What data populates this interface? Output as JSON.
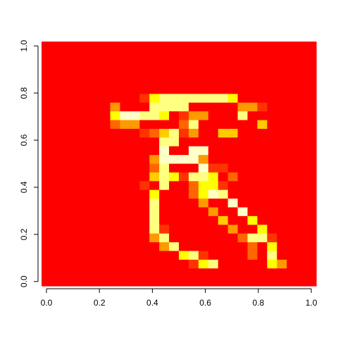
{
  "chart_data": {
    "type": "heatmap",
    "title": "",
    "xlabel": "",
    "ylabel": "",
    "xlim": [
      0,
      1
    ],
    "ylim": [
      0,
      1
    ],
    "x_ticks": [
      "0.0",
      "0.2",
      "0.4",
      "0.6",
      "0.8",
      "1.0"
    ],
    "y_ticks": [
      "0.0",
      "0.2",
      "0.4",
      "0.6",
      "0.8",
      "1.0"
    ],
    "x_tick_values": [
      0,
      0.2,
      0.4,
      0.6,
      0.8,
      1.0
    ],
    "y_tick_values": [
      0,
      0.2,
      0.4,
      0.6,
      0.8,
      1.0
    ],
    "palette": [
      "#ff0000",
      "#ff3300",
      "#ff6600",
      "#ff9900",
      "#ffcc00",
      "#ffff00",
      "#ffff80",
      "#ffffc8"
    ],
    "grid_rows": 28,
    "grid_cols": 28,
    "rows_top_to_bottom": [
      "............................",
      "............................",
      "............................",
      "............................",
      "............................",
      "............................",
      "..........1566666665........",
      ".......3888666688888331.....",
      ".......57766501338886.......",
      ".......233000026888...4.....",
      "..........1246138844........",
      "............6688............",
      "............78877...........",
      "...........377773...........",
      "...........26888711.........",
      "...........4651665.2........",
      "..........1.6..2551.........",
      "...........5...2576.........",
      "...........6....3887........",
      "...........6.....3887.......",
      "...........6......4885......",
      "...........61......3885.....",
      "...........36.......2661....",
      "............36.......285....",
      "..............561....286....",
      "...............1568888853...",
      "............................",
      "............................"
    ]
  }
}
